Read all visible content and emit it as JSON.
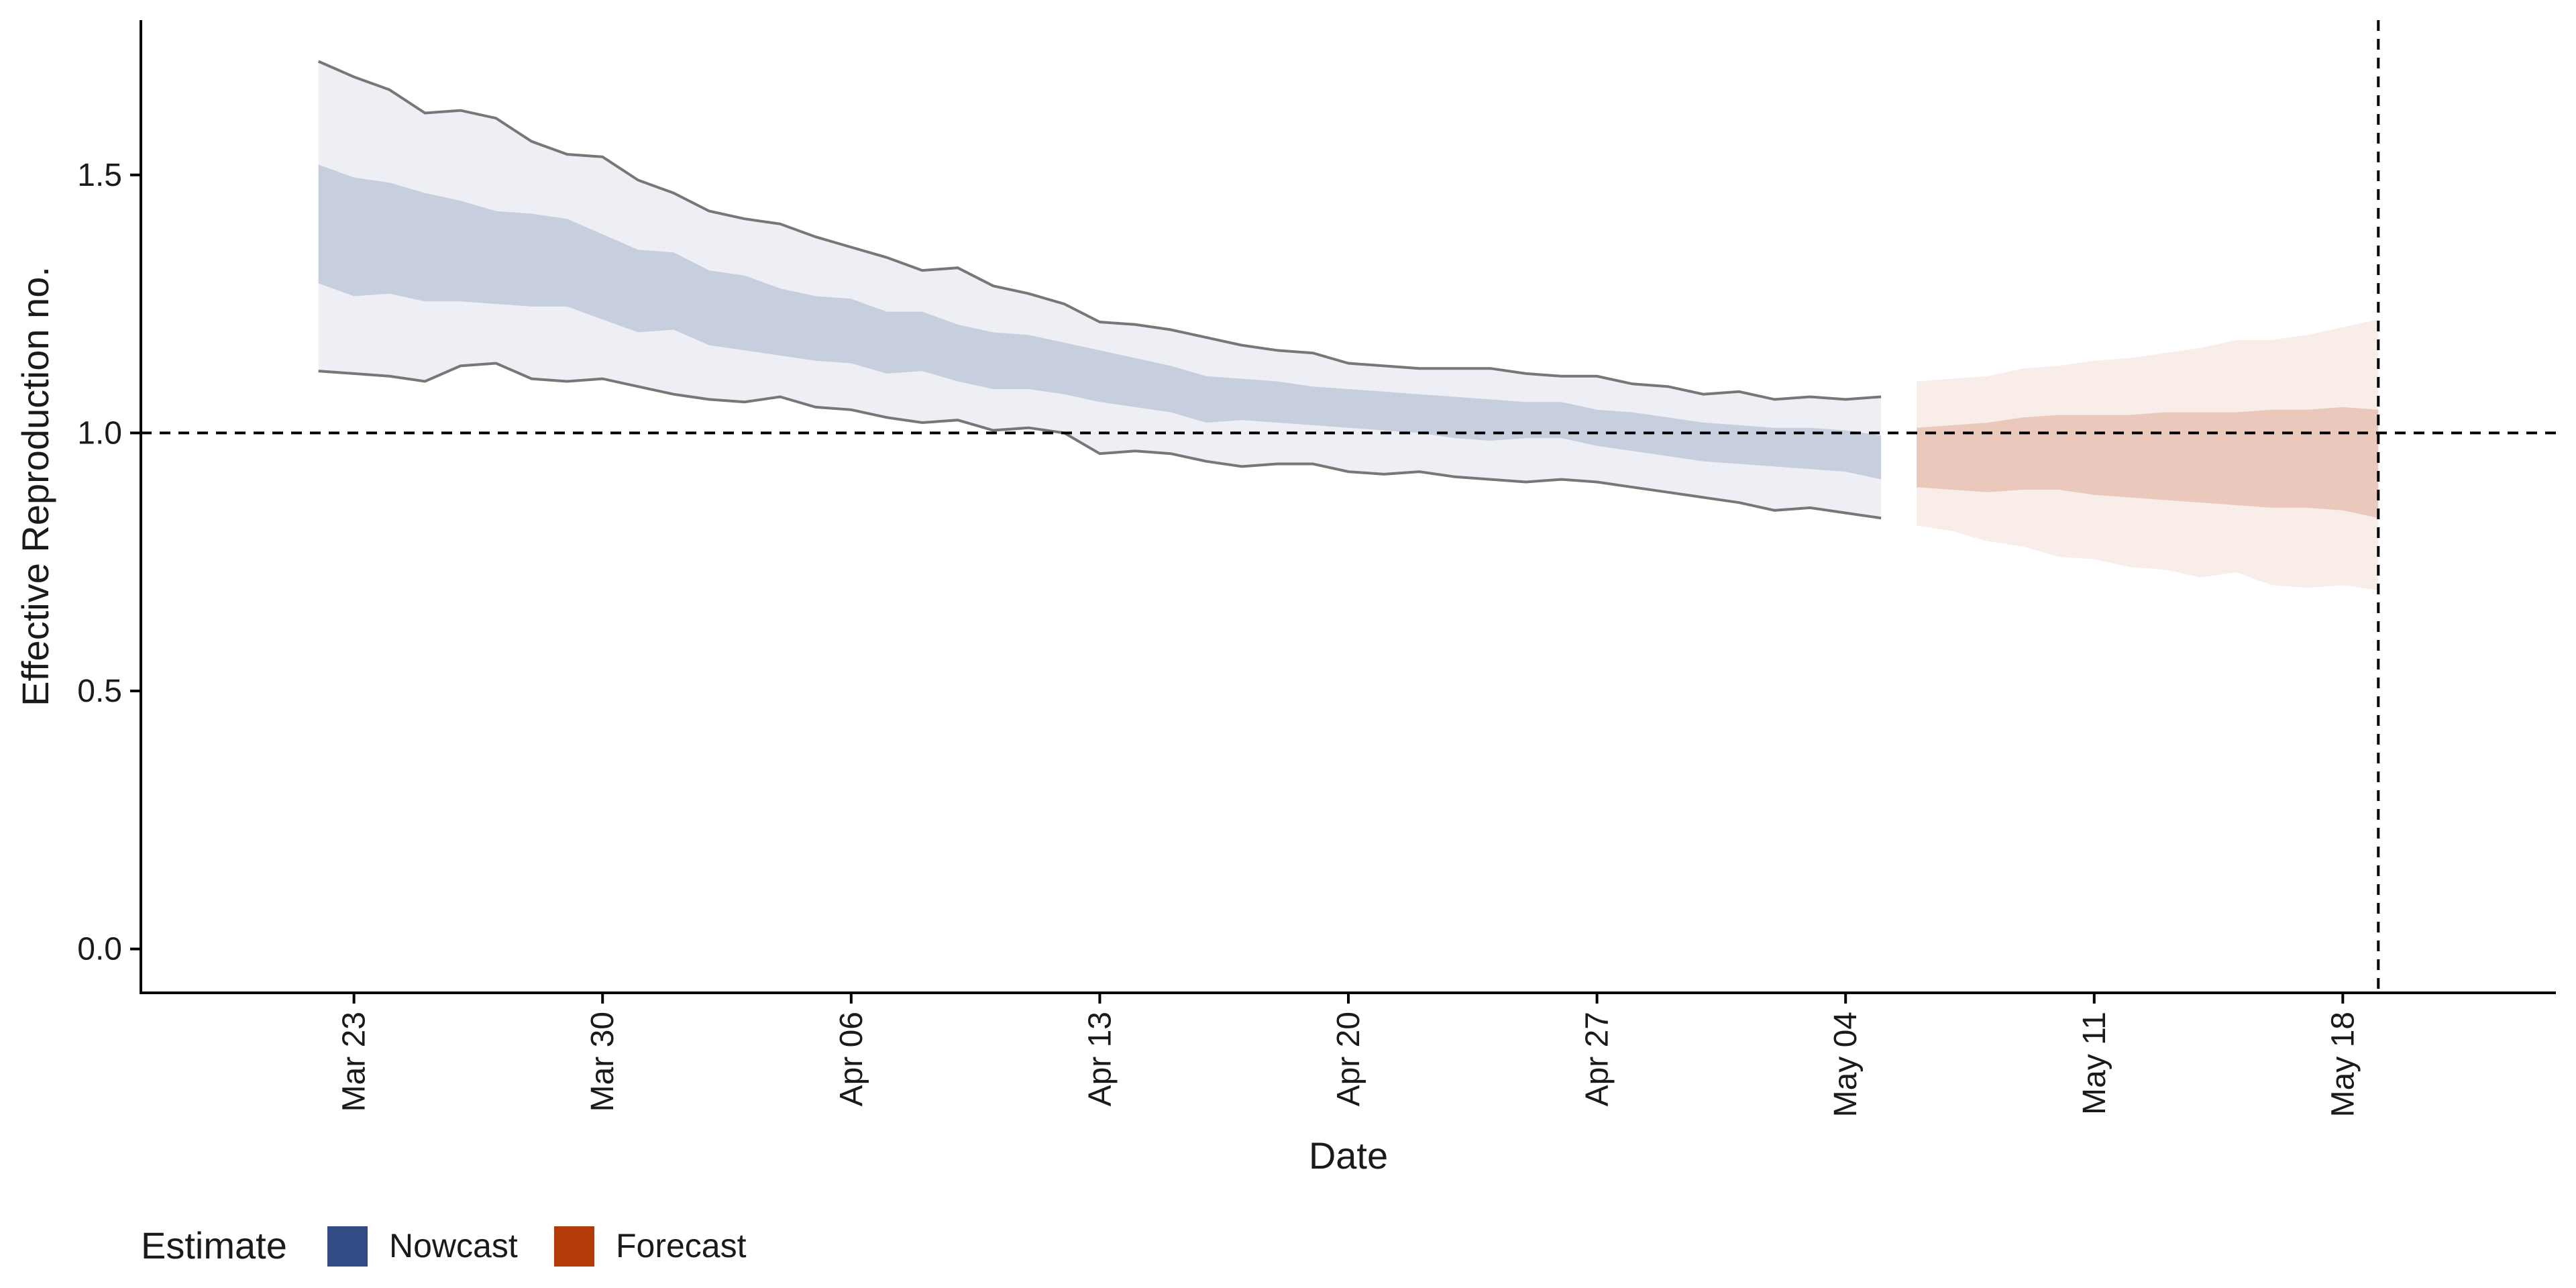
{
  "chart_data": {
    "type": "area",
    "title": "",
    "xlabel": "Date",
    "ylabel": "Effective Reproduction no.",
    "x_range": [
      "2020-03-17",
      "2020-05-24"
    ],
    "ylim": [
      -0.085,
      1.8
    ],
    "y_ticks": [
      0.0,
      0.5,
      1.0,
      1.5
    ],
    "y_tick_labels": [
      "0.0",
      "0.5",
      "1.0",
      "1.5"
    ],
    "x_ticks": [
      "2020-03-23",
      "2020-03-30",
      "2020-04-06",
      "2020-04-13",
      "2020-04-20",
      "2020-04-27",
      "2020-05-04",
      "2020-05-11",
      "2020-05-18"
    ],
    "x_tick_labels": [
      "Mar 23",
      "Mar 30",
      "Apr 06",
      "Apr 13",
      "Apr 20",
      "Apr 27",
      "May 04",
      "May 11",
      "May 18"
    ],
    "reference_lines": {
      "horizontal_y": 1.0,
      "vertical_x": "2020-05-19"
    },
    "grid": false,
    "legend": {
      "position": "bottom-left",
      "title": "Estimate",
      "items": [
        {
          "label": "Nowcast",
          "color": "#324b84"
        },
        {
          "label": "Forecast",
          "color": "#b33b09"
        }
      ]
    },
    "series": [
      {
        "name": "Nowcast",
        "color": "#324b84",
        "x": [
          "2020-03-22",
          "2020-03-23",
          "2020-03-24",
          "2020-03-25",
          "2020-03-26",
          "2020-03-27",
          "2020-03-28",
          "2020-03-29",
          "2020-03-30",
          "2020-03-31",
          "2020-04-01",
          "2020-04-02",
          "2020-04-03",
          "2020-04-04",
          "2020-04-05",
          "2020-04-06",
          "2020-04-07",
          "2020-04-08",
          "2020-04-09",
          "2020-04-10",
          "2020-04-11",
          "2020-04-12",
          "2020-04-13",
          "2020-04-14",
          "2020-04-15",
          "2020-04-16",
          "2020-04-17",
          "2020-04-18",
          "2020-04-19",
          "2020-04-20",
          "2020-04-21",
          "2020-04-22",
          "2020-04-23",
          "2020-04-24",
          "2020-04-25",
          "2020-04-26",
          "2020-04-27",
          "2020-04-28",
          "2020-04-29",
          "2020-04-30",
          "2020-05-01",
          "2020-05-02",
          "2020-05-03",
          "2020-05-04",
          "2020-05-05"
        ],
        "lower_90": [
          1.12,
          1.115,
          1.11,
          1.1,
          1.13,
          1.135,
          1.105,
          1.1,
          1.105,
          1.09,
          1.075,
          1.065,
          1.06,
          1.07,
          1.05,
          1.045,
          1.03,
          1.02,
          1.025,
          1.005,
          1.01,
          1.0,
          0.96,
          0.965,
          0.96,
          0.945,
          0.935,
          0.94,
          0.94,
          0.925,
          0.92,
          0.925,
          0.915,
          0.91,
          0.905,
          0.91,
          0.905,
          0.895,
          0.885,
          0.875,
          0.865,
          0.85,
          0.855,
          0.845,
          0.835
        ],
        "upper_90": [
          1.72,
          1.69,
          1.665,
          1.62,
          1.625,
          1.61,
          1.565,
          1.54,
          1.535,
          1.49,
          1.465,
          1.43,
          1.415,
          1.405,
          1.38,
          1.36,
          1.34,
          1.315,
          1.32,
          1.285,
          1.27,
          1.25,
          1.215,
          1.21,
          1.2,
          1.185,
          1.17,
          1.16,
          1.155,
          1.135,
          1.13,
          1.125,
          1.125,
          1.125,
          1.115,
          1.11,
          1.11,
          1.095,
          1.09,
          1.075,
          1.08,
          1.065,
          1.07,
          1.065,
          1.07
        ],
        "lower_50": [
          1.29,
          1.265,
          1.27,
          1.255,
          1.255,
          1.25,
          1.245,
          1.245,
          1.22,
          1.195,
          1.2,
          1.17,
          1.16,
          1.15,
          1.14,
          1.135,
          1.115,
          1.12,
          1.1,
          1.085,
          1.085,
          1.075,
          1.06,
          1.05,
          1.04,
          1.02,
          1.025,
          1.02,
          1.015,
          1.01,
          1.005,
          1.0,
          0.99,
          0.985,
          0.99,
          0.99,
          0.975,
          0.965,
          0.955,
          0.945,
          0.94,
          0.935,
          0.93,
          0.925,
          0.91
        ],
        "upper_50": [
          1.52,
          1.495,
          1.485,
          1.465,
          1.45,
          1.43,
          1.425,
          1.415,
          1.385,
          1.355,
          1.35,
          1.315,
          1.305,
          1.28,
          1.265,
          1.26,
          1.235,
          1.235,
          1.21,
          1.195,
          1.19,
          1.175,
          1.16,
          1.145,
          1.13,
          1.11,
          1.105,
          1.1,
          1.09,
          1.085,
          1.08,
          1.075,
          1.07,
          1.065,
          1.06,
          1.06,
          1.045,
          1.04,
          1.03,
          1.02,
          1.015,
          1.01,
          1.01,
          1.005,
          0.995
        ]
      },
      {
        "name": "Forecast",
        "color": "#b33b09",
        "x": [
          "2020-05-06",
          "2020-05-07",
          "2020-05-08",
          "2020-05-09",
          "2020-05-10",
          "2020-05-11",
          "2020-05-12",
          "2020-05-13",
          "2020-05-14",
          "2020-05-15",
          "2020-05-16",
          "2020-05-17",
          "2020-05-18",
          "2020-05-19"
        ],
        "lower_90": [
          0.82,
          0.81,
          0.79,
          0.78,
          0.76,
          0.755,
          0.74,
          0.735,
          0.72,
          0.73,
          0.705,
          0.7,
          0.705,
          0.695
        ],
        "upper_90": [
          1.1,
          1.105,
          1.11,
          1.125,
          1.13,
          1.14,
          1.145,
          1.155,
          1.165,
          1.18,
          1.18,
          1.19,
          1.205,
          1.22
        ],
        "lower_50": [
          0.895,
          0.89,
          0.885,
          0.89,
          0.89,
          0.88,
          0.875,
          0.87,
          0.865,
          0.86,
          0.855,
          0.855,
          0.85,
          0.835
        ],
        "upper_50": [
          1.01,
          1.015,
          1.02,
          1.03,
          1.035,
          1.035,
          1.035,
          1.04,
          1.04,
          1.04,
          1.045,
          1.045,
          1.05,
          1.045
        ]
      }
    ]
  }
}
